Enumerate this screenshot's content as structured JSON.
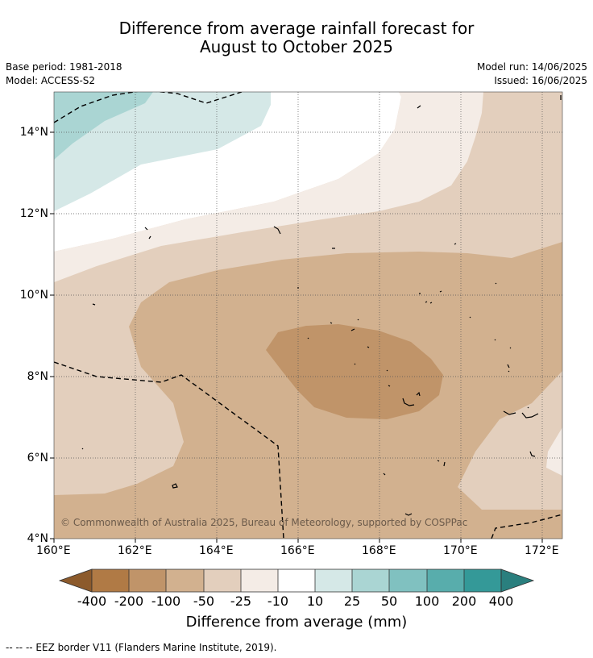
{
  "header": {
    "title_line1": "Difference from average rainfall forecast for",
    "title_line2": "August to October 2025",
    "base_period": "Base period: 1981-2018",
    "model": "Model: ACCESS-S2",
    "model_run": "Model run: 14/06/2025",
    "issued": "Issued: 16/06/2025"
  },
  "map": {
    "x_ticks": [
      "160°E",
      "162°E",
      "164°E",
      "166°E",
      "168°E",
      "170°E",
      "172°E"
    ],
    "y_ticks": [
      "14°N",
      "12°N",
      "10°N",
      "8°N",
      "6°N",
      "4°N"
    ],
    "lon_range": [
      160,
      172.5
    ],
    "lat_range": [
      4,
      15
    ],
    "copyright": "© Commonwealth of Australia 2025, Bureau of Meteorology, supported by COSPPac"
  },
  "colorbar": {
    "title": "Difference from average (mm)",
    "labels": [
      "-400",
      "-200",
      "-100",
      "-50",
      "-25",
      "-10",
      "10",
      "25",
      "50",
      "100",
      "200",
      "400"
    ],
    "colors": [
      "#8c5a2b",
      "#b07a45",
      "#c09469",
      "#d2b18f",
      "#e3cfbd",
      "#f4ece6",
      "#ffffff",
      "#d5e8e7",
      "#aad5d3",
      "#80c1c0",
      "#58adac",
      "#349998",
      "#2a7f7e"
    ]
  },
  "footer": {
    "legend_text": "--  --  -- EEZ border V11 (Flanders Marine Institute, 2019)."
  }
}
